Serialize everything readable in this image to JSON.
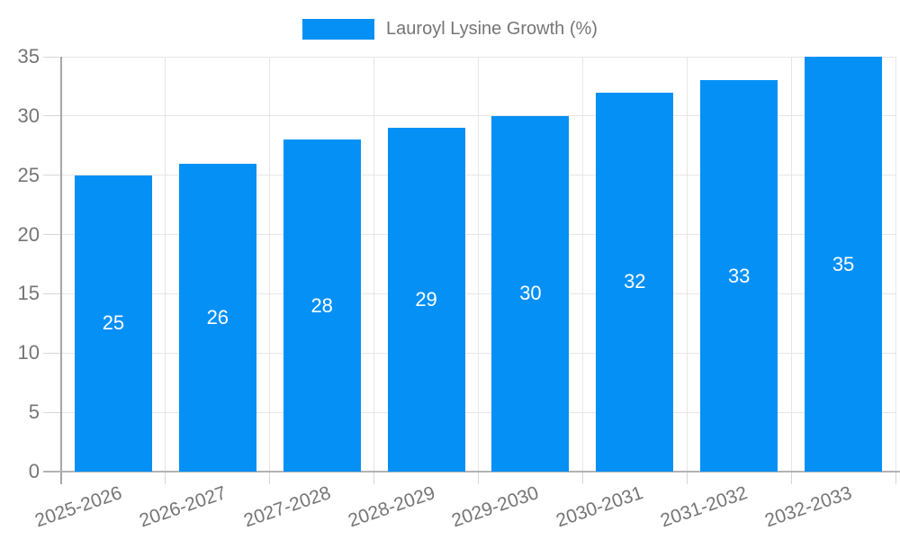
{
  "chart_data": {
    "type": "bar",
    "title": "",
    "categories": [
      "2025-2026",
      "2026-2027",
      "2027-2028",
      "2028-2029",
      "2029-2030",
      "2030-2031",
      "2031-2032",
      "2032-2033"
    ],
    "series": [
      {
        "name": "Lauroyl Lysine Growth (%)",
        "values": [
          25,
          26,
          28,
          29,
          30,
          32,
          33,
          35
        ]
      }
    ],
    "bar_value_labels": [
      "25",
      "26",
      "28",
      "29",
      "30",
      "32",
      "33",
      "35"
    ],
    "ylim": [
      0,
      35
    ],
    "yticks": [
      0,
      5,
      10,
      15,
      20,
      25,
      30,
      35
    ],
    "ytick_labels": [
      "0",
      "5",
      "10",
      "15",
      "20",
      "25",
      "30",
      "35"
    ],
    "xlabel": "",
    "ylabel": "",
    "grid": "both",
    "legend": {
      "position": "top",
      "label": "Lauroyl Lysine Growth (%)"
    },
    "colors": {
      "bar": "#0590F6",
      "bar_label_text": "#FFFFFF",
      "axis_text": "#757575",
      "gridline": "#E6E6E6",
      "tick": "#D6D6D6",
      "y_axis_line": "#A6A6A6",
      "x_axis_line": "#B3B3B3",
      "background": "#FFFFFF"
    }
  }
}
